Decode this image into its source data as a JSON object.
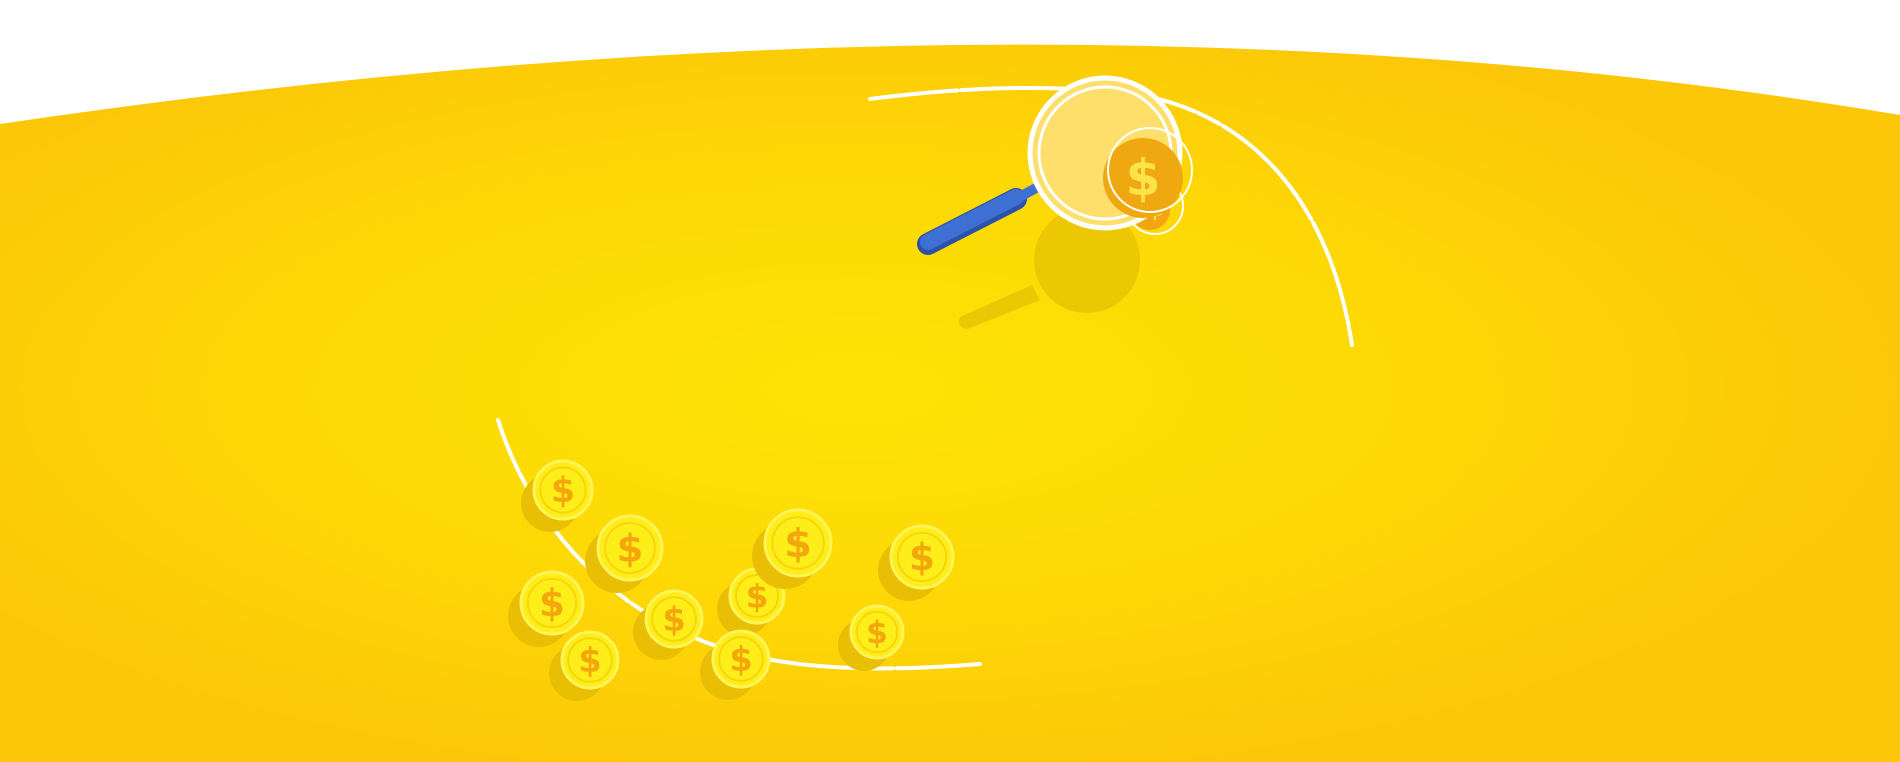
{
  "colors": {
    "background_top": "#ffffff",
    "yellow_center": "#fde305",
    "yellow_edge": "#fcc708",
    "coin_face": "#fdee1a",
    "coin_ring": "#fff35a",
    "coin_symbol": "#f4a70c",
    "coin_shadow": "#e8bf04",
    "magnifier_lens": "#fedf6c",
    "magnifier_handle": "#3e6fd3",
    "magnifier_handle_dark": "#2b52a8",
    "chalk": "#ffffff"
  },
  "illustration": {
    "coin_symbol": "$",
    "coin_count": 12,
    "icons": [
      "magnifying-glass-icon",
      "dollar-coin-icon",
      "chalk-circle-icon"
    ]
  }
}
